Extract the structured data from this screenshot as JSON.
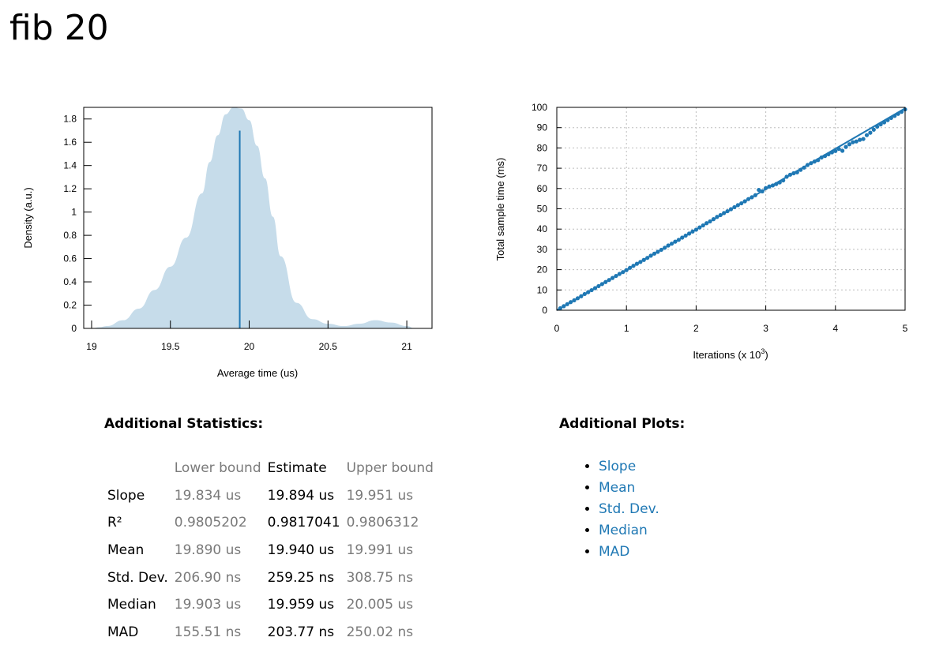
{
  "page": {
    "title": "fib 20"
  },
  "chart_data": [
    {
      "type": "area",
      "xlabel": "Average time (us)",
      "ylabel": "Density (a.u.)",
      "xlim": [
        18.95,
        21.16
      ],
      "ylim": [
        0,
        1.9
      ],
      "x_ticks": [
        19,
        19.5,
        20,
        20.5,
        21
      ],
      "y_ticks": [
        0,
        0.2,
        0.4,
        0.6,
        0.8,
        1,
        1.2,
        1.4,
        1.6,
        1.8
      ],
      "fill_color": "#c6dcea",
      "line_color": "#1f78b4",
      "density": {
        "x": [
          19.0,
          19.05,
          19.1,
          19.2,
          19.3,
          19.4,
          19.5,
          19.6,
          19.7,
          19.75,
          19.8,
          19.85,
          19.9,
          19.95,
          20.0,
          20.05,
          20.1,
          20.15,
          20.2,
          20.3,
          20.4,
          20.5,
          20.6,
          20.7,
          20.8,
          20.9,
          21.0,
          21.05
        ],
        "y": [
          0.0,
          0.01,
          0.02,
          0.07,
          0.17,
          0.33,
          0.53,
          0.78,
          1.16,
          1.43,
          1.66,
          1.84,
          1.9,
          1.89,
          1.79,
          1.57,
          1.29,
          0.96,
          0.62,
          0.22,
          0.08,
          0.04,
          0.02,
          0.04,
          0.07,
          0.05,
          0.02,
          0.0
        ]
      },
      "estimate_line": {
        "x": 19.94,
        "y": 1.7
      }
    },
    {
      "type": "scatter",
      "xlabel": "Iterations (x 10",
      "xlabel_sup": "3",
      "xlabel_end": ")",
      "ylabel": "Total sample time (ms)",
      "xlim": [
        0,
        5
      ],
      "ylim": [
        0,
        100
      ],
      "x_ticks": [
        0,
        1,
        2,
        3,
        4,
        5
      ],
      "y_ticks": [
        0,
        10,
        20,
        30,
        40,
        50,
        60,
        70,
        80,
        90,
        100
      ],
      "grid": true,
      "point_color": "#1f78b4",
      "regression": {
        "x": [
          0,
          5
        ],
        "y": [
          0,
          99.5
        ]
      },
      "points": {
        "x": [
          0.05,
          0.1,
          0.15,
          0.2,
          0.25,
          0.3,
          0.35,
          0.4,
          0.45,
          0.5,
          0.55,
          0.6,
          0.65,
          0.7,
          0.75,
          0.8,
          0.85,
          0.9,
          0.95,
          1.0,
          1.05,
          1.1,
          1.15,
          1.2,
          1.25,
          1.3,
          1.35,
          1.4,
          1.45,
          1.5,
          1.55,
          1.6,
          1.65,
          1.7,
          1.75,
          1.8,
          1.85,
          1.9,
          1.95,
          2.0,
          2.05,
          2.1,
          2.15,
          2.2,
          2.25,
          2.3,
          2.35,
          2.4,
          2.45,
          2.5,
          2.55,
          2.6,
          2.65,
          2.7,
          2.75,
          2.8,
          2.85,
          2.9,
          2.95,
          3.0,
          3.05,
          3.1,
          3.15,
          3.2,
          3.25,
          3.3,
          3.35,
          3.4,
          3.45,
          3.5,
          3.55,
          3.6,
          3.65,
          3.7,
          3.75,
          3.8,
          3.85,
          3.9,
          3.95,
          4.0,
          4.05,
          4.1,
          4.15,
          4.2,
          4.25,
          4.3,
          4.35,
          4.4,
          4.45,
          4.5,
          4.55,
          4.6,
          4.65,
          4.7,
          4.75,
          4.8,
          4.85,
          4.9,
          4.95,
          5.0
        ],
        "y": [
          1.0,
          2.0,
          3.0,
          4.0,
          4.9,
          5.9,
          6.9,
          8.0,
          8.9,
          9.9,
          10.9,
          11.9,
          12.9,
          13.9,
          14.9,
          15.9,
          16.9,
          17.9,
          18.8,
          19.8,
          20.9,
          21.9,
          22.9,
          23.8,
          24.8,
          25.8,
          26.9,
          27.9,
          28.8,
          29.8,
          30.8,
          31.9,
          32.8,
          33.8,
          34.7,
          35.8,
          36.8,
          37.8,
          38.8,
          39.7,
          40.8,
          41.8,
          42.9,
          43.8,
          44.9,
          46.0,
          46.9,
          47.9,
          48.8,
          49.8,
          50.8,
          51.8,
          52.7,
          53.7,
          54.8,
          55.7,
          56.7,
          59.3,
          58.6,
          60.2,
          61.0,
          61.5,
          62.2,
          63.0,
          64.0,
          65.8,
          66.8,
          67.5,
          68.0,
          69.2,
          70.3,
          71.6,
          72.5,
          73.3,
          74.0,
          75.3,
          76.0,
          76.9,
          77.8,
          78.5,
          79.5,
          78.6,
          80.5,
          81.8,
          82.8,
          83.2,
          84.0,
          84.4,
          86.3,
          87.5,
          89.0,
          90.5,
          91.6,
          92.6,
          93.7,
          94.8,
          95.8,
          96.8,
          97.8,
          99.0
        ]
      }
    }
  ],
  "stats": {
    "title": "Additional Statistics:",
    "headers": [
      "",
      "Lower bound",
      "Estimate",
      "Upper bound"
    ],
    "rows": [
      {
        "label": "Slope",
        "lower": "19.834 us",
        "estimate": "19.894 us",
        "upper": "19.951 us"
      },
      {
        "label": "R²",
        "lower": "0.9805202",
        "estimate": "0.9817041",
        "upper": "0.9806312"
      },
      {
        "label": "Mean",
        "lower": "19.890 us",
        "estimate": "19.940 us",
        "upper": "19.991 us"
      },
      {
        "label": "Std. Dev.",
        "lower": "206.90 ns",
        "estimate": "259.25 ns",
        "upper": "308.75 ns"
      },
      {
        "label": "Median",
        "lower": "19.903 us",
        "estimate": "19.959 us",
        "upper": "20.005 us"
      },
      {
        "label": "MAD",
        "lower": "155.51 ns",
        "estimate": "203.77 ns",
        "upper": "250.02 ns"
      }
    ]
  },
  "plots": {
    "title": "Additional Plots:",
    "links": [
      "Slope",
      "Mean",
      "Std. Dev.",
      "Median",
      "MAD"
    ]
  }
}
